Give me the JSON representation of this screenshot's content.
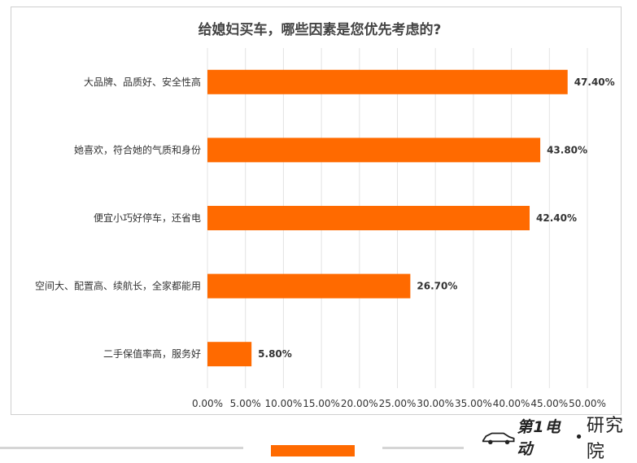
{
  "chart_data": {
    "type": "bar",
    "orientation": "horizontal",
    "title": "给媳妇买车，哪些因素是您优先考虑的?",
    "categories": [
      "大品牌、品质好、安全性高",
      "她喜欢，符合她的气质和身份",
      "便宜小巧好停车，还省电",
      "空间大、配置高、续航长，全家都能用",
      "二手保值率高，服务好"
    ],
    "values": [
      47.4,
      43.8,
      42.4,
      26.7,
      5.8
    ],
    "value_labels": [
      "47.40%",
      "43.80%",
      "42.40%",
      "26.70%",
      "5.80%"
    ],
    "xlim": [
      0,
      50
    ],
    "xticks": [
      "0.00%",
      "5.00%",
      "10.00%",
      "15.00%",
      "20.00%",
      "25.00%",
      "30.00%",
      "35.00%",
      "40.00%",
      "45.00%",
      "50.00%"
    ],
    "grid": true,
    "bar_color": "#ff6a00"
  },
  "brand": {
    "name": "第1电动",
    "dot": "•",
    "sub": "研究院"
  }
}
